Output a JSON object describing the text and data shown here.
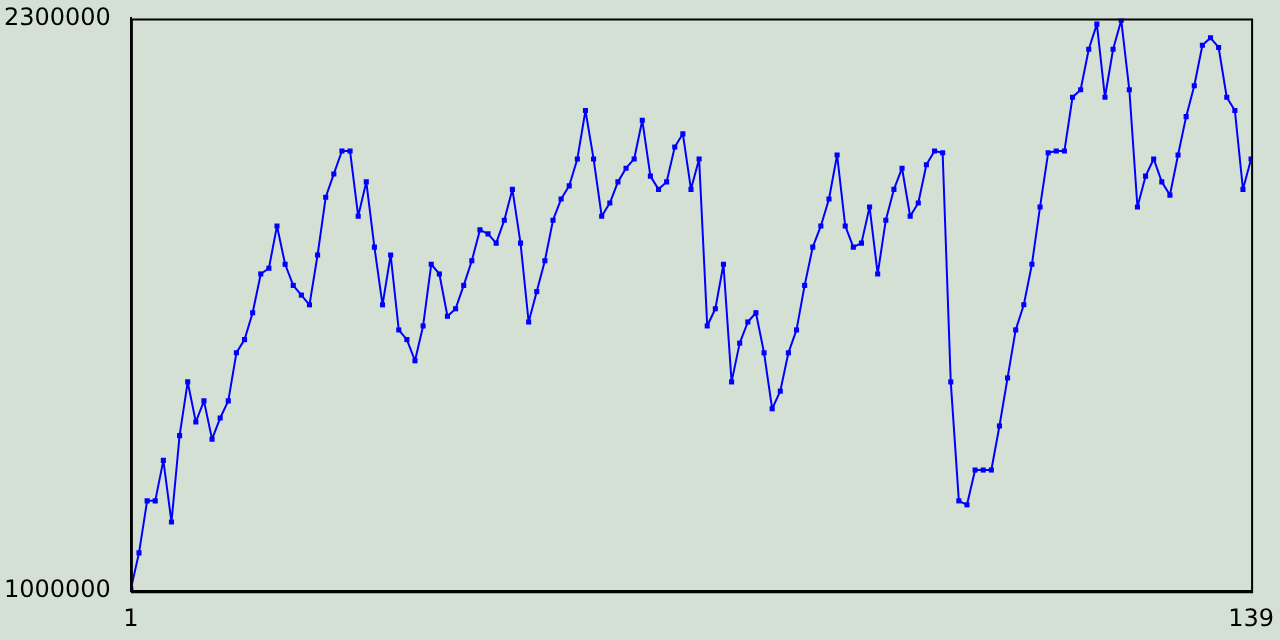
{
  "chart_data": {
    "type": "line",
    "color": "#0000ff",
    "marker": "square",
    "grid": false,
    "x": [
      1,
      2,
      3,
      4,
      5,
      6,
      7,
      8,
      9,
      10,
      11,
      12,
      13,
      14,
      15,
      16,
      17,
      18,
      19,
      20,
      21,
      22,
      23,
      24,
      25,
      26,
      27,
      28,
      29,
      30,
      31,
      32,
      33,
      34,
      35,
      36,
      37,
      38,
      39,
      40,
      41,
      42,
      43,
      44,
      45,
      46,
      47,
      48,
      49,
      50,
      51,
      52,
      53,
      54,
      55,
      56,
      57,
      58,
      59,
      60,
      61,
      62,
      63,
      64,
      65,
      66,
      67,
      68,
      69,
      70,
      71,
      72,
      73,
      74,
      75,
      76,
      77,
      78,
      79,
      80,
      81,
      82,
      83,
      84,
      85,
      86,
      87,
      88,
      89,
      90,
      91,
      92,
      93,
      94,
      95,
      96,
      97,
      98,
      99,
      100,
      101,
      102,
      103,
      104,
      105,
      106,
      107,
      108,
      109,
      110,
      111,
      112,
      113,
      114,
      115,
      116,
      117,
      118,
      119,
      120,
      121,
      122,
      123,
      124,
      125,
      126,
      127,
      128,
      129,
      130,
      131,
      132,
      133,
      134,
      135,
      136,
      137,
      138,
      139
    ],
    "values": [
      1005000,
      1087000,
      1205000,
      1205000,
      1297000,
      1157000,
      1353000,
      1475000,
      1384000,
      1432000,
      1345000,
      1393000,
      1432000,
      1541000,
      1571000,
      1632000,
      1720000,
      1733000,
      1829000,
      1742000,
      1694000,
      1672000,
      1650000,
      1763000,
      1894000,
      1947000,
      1999000,
      1999000,
      1851000,
      1929000,
      1781000,
      1650000,
      1763000,
      1593000,
      1571000,
      1523000,
      1602000,
      1742000,
      1720000,
      1624000,
      1641000,
      1694000,
      1750000,
      1820000,
      1811000,
      1790000,
      1842000,
      1912000,
      1790000,
      1611000,
      1680000,
      1750000,
      1842000,
      1890000,
      1920000,
      1981000,
      2091000,
      1981000,
      1851000,
      1881000,
      1929000,
      1960000,
      1981000,
      2069000,
      1942000,
      1912000,
      1929000,
      2008000,
      2038000,
      1912000,
      1981000,
      1602000,
      1641000,
      1742000,
      1475000,
      1563000,
      1611000,
      1632000,
      1541000,
      1414000,
      1454000,
      1541000,
      1593000,
      1694000,
      1781000,
      1829000,
      1890000,
      1990000,
      1829000,
      1781000,
      1790000,
      1872000,
      1720000,
      1842000,
      1912000,
      1960000,
      1851000,
      1881000,
      1968000,
      1999000,
      1995000,
      1475000,
      1205000,
      1196000,
      1275000,
      1275000,
      1275000,
      1375000,
      1484000,
      1593000,
      1650000,
      1742000,
      1872000,
      1995000,
      1999000,
      1999000,
      2121000,
      2138000,
      2230000,
      2287000,
      2121000,
      2230000,
      2296000,
      2138000,
      1872000,
      1942000,
      1981000,
      1929000,
      1899000,
      1990000,
      2077000,
      2147000,
      2239000,
      2256000,
      2234000,
      2121000,
      2091000,
      1912000,
      1981000
    ],
    "xlim": [
      1,
      139
    ],
    "xticks": [
      1,
      139
    ],
    "ylim": [
      1000000,
      2300000
    ],
    "yticks": [
      1000000,
      2300000
    ]
  }
}
